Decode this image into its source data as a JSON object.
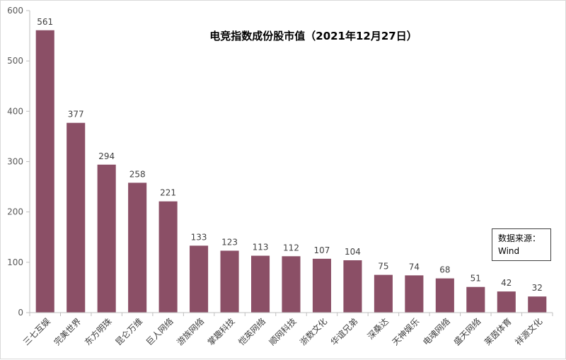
{
  "chart_data": {
    "type": "bar",
    "title": "电竞指数成份股市值（2021年12月27日）",
    "categories": [
      "三七互娱",
      "完美世界",
      "东方明珠",
      "昆仑万维",
      "巨人网络",
      "游族网络",
      "掌趣科技",
      "恺英网络",
      "顺网科技",
      "浙数文化",
      "华谊兄弟",
      "深桑达",
      "天神娱乐",
      "电魂网络",
      "盛天网络",
      "莱茵体育",
      "祥源文化"
    ],
    "values": [
      561,
      377,
      294,
      258,
      221,
      133,
      123,
      113,
      112,
      107,
      104,
      75,
      74,
      68,
      51,
      42,
      32
    ],
    "ylim": [
      0,
      600
    ],
    "yticks": [
      0,
      100,
      200,
      300,
      400,
      500,
      600
    ],
    "grid": false,
    "legend": "none",
    "xlabel": "",
    "ylabel": "",
    "bar_color": "#8B4F66"
  },
  "source_note": {
    "line1": "数据来源：",
    "line2": "Wind"
  }
}
